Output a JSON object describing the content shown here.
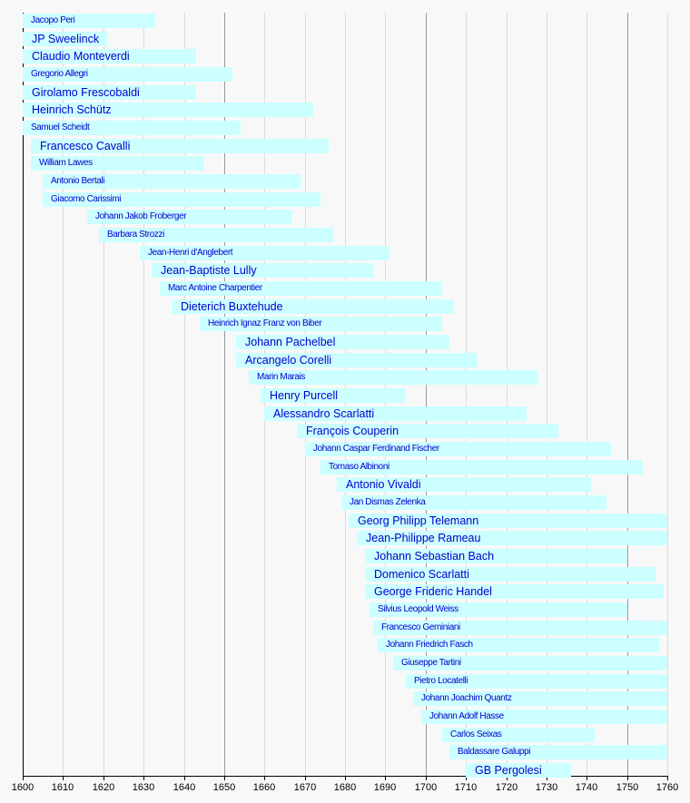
{
  "chart_data": {
    "type": "timeline",
    "title": "",
    "xlabel": "",
    "ylabel": "",
    "xlim": [
      1600,
      1760
    ],
    "grid": {
      "minor_every": 10,
      "major_every": 50
    },
    "tick_labels": [
      "1600",
      "1610",
      "1620",
      "1630",
      "1640",
      "1650",
      "1660",
      "1670",
      "1680",
      "1690",
      "1700",
      "1710",
      "1720",
      "1730",
      "1740",
      "1750",
      "1760"
    ],
    "bar_color": "#ccffff",
    "label_color": "#0000cc",
    "background": "#f8f8f8",
    "composers": [
      {
        "name": "Jacopo Peri",
        "start": 1600,
        "end": 1633,
        "emphasis": false
      },
      {
        "name": "JP Sweelinck",
        "start": 1600,
        "end": 1621,
        "emphasis": true
      },
      {
        "name": "Claudio Monteverdi",
        "start": 1600,
        "end": 1643,
        "emphasis": true
      },
      {
        "name": "Gregorio Allegri",
        "start": 1600,
        "end": 1652,
        "emphasis": false
      },
      {
        "name": "Girolamo Frescobaldi",
        "start": 1600,
        "end": 1643,
        "emphasis": true
      },
      {
        "name": "Heinrich Schütz",
        "start": 1600,
        "end": 1672,
        "emphasis": true
      },
      {
        "name": "Samuel Scheidt",
        "start": 1600,
        "end": 1654,
        "emphasis": false
      },
      {
        "name": "Francesco Cavalli",
        "start": 1602,
        "end": 1676,
        "emphasis": true
      },
      {
        "name": "William Lawes",
        "start": 1602,
        "end": 1645,
        "emphasis": false
      },
      {
        "name": "Antonio Bertali",
        "start": 1605,
        "end": 1669,
        "emphasis": false
      },
      {
        "name": "Giacomo Carissimi",
        "start": 1605,
        "end": 1674,
        "emphasis": false
      },
      {
        "name": "Johann Jakob Froberger",
        "start": 1616,
        "end": 1667,
        "emphasis": false
      },
      {
        "name": "Barbara Strozzi",
        "start": 1619,
        "end": 1677,
        "emphasis": false
      },
      {
        "name": "Jean-Henri d'Anglebert",
        "start": 1629,
        "end": 1691,
        "emphasis": false
      },
      {
        "name": "Jean-Baptiste Lully",
        "start": 1632,
        "end": 1687,
        "emphasis": true
      },
      {
        "name": "Marc Antoine Charpentier",
        "start": 1634,
        "end": 1704,
        "emphasis": false
      },
      {
        "name": "Dieterich Buxtehude",
        "start": 1637,
        "end": 1707,
        "emphasis": true
      },
      {
        "name": "Heinrich Ignaz Franz von Biber",
        "start": 1644,
        "end": 1704,
        "emphasis": false
      },
      {
        "name": "Johann Pachelbel",
        "start": 1653,
        "end": 1706,
        "emphasis": true
      },
      {
        "name": "Arcangelo Corelli",
        "start": 1653,
        "end": 1713,
        "emphasis": true
      },
      {
        "name": "Marin Marais",
        "start": 1656,
        "end": 1728,
        "emphasis": false
      },
      {
        "name": "Henry Purcell",
        "start": 1659,
        "end": 1695,
        "emphasis": true
      },
      {
        "name": "Alessandro Scarlatti",
        "start": 1660,
        "end": 1725,
        "emphasis": true
      },
      {
        "name": "François Couperin",
        "start": 1668,
        "end": 1733,
        "emphasis": true
      },
      {
        "name": "Johann Caspar Ferdinand Fischer",
        "start": 1670,
        "end": 1746,
        "emphasis": false
      },
      {
        "name": "Tomaso Albinoni",
        "start": 1674,
        "end": 1754,
        "emphasis": false
      },
      {
        "name": "Antonio Vivaldi",
        "start": 1678,
        "end": 1741,
        "emphasis": true
      },
      {
        "name": "Jan Dismas Zelenka",
        "start": 1679,
        "end": 1745,
        "emphasis": false
      },
      {
        "name": "Georg Philipp Telemann",
        "start": 1681,
        "end": 1767,
        "emphasis": true
      },
      {
        "name": "Jean-Philippe Rameau",
        "start": 1683,
        "end": 1764,
        "emphasis": true
      },
      {
        "name": "Johann Sebastian Bach",
        "start": 1685,
        "end": 1750,
        "emphasis": true
      },
      {
        "name": "Domenico Scarlatti",
        "start": 1685,
        "end": 1757,
        "emphasis": true
      },
      {
        "name": "George Frideric Handel",
        "start": 1685,
        "end": 1759,
        "emphasis": true
      },
      {
        "name": "Silvius Leopold Weiss",
        "start": 1686,
        "end": 1750,
        "emphasis": false
      },
      {
        "name": "Francesco Geminiani",
        "start": 1687,
        "end": 1762,
        "emphasis": false
      },
      {
        "name": "Johann Friedrich Fasch",
        "start": 1688,
        "end": 1758,
        "emphasis": false
      },
      {
        "name": "Giuseppe Tartini",
        "start": 1692,
        "end": 1770,
        "emphasis": false
      },
      {
        "name": "Pietro Locatelli",
        "start": 1695,
        "end": 1764,
        "emphasis": false
      },
      {
        "name": "Johann Joachim Quantz",
        "start": 1697,
        "end": 1773,
        "emphasis": false
      },
      {
        "name": "Johann Adolf Hasse",
        "start": 1699,
        "end": 1783,
        "emphasis": false
      },
      {
        "name": "Carlos Seixas",
        "start": 1704,
        "end": 1742,
        "emphasis": false
      },
      {
        "name": "Baldassare Galuppi",
        "start": 1706,
        "end": 1785,
        "emphasis": false
      },
      {
        "name": "GB Pergolesi",
        "start": 1710,
        "end": 1736,
        "emphasis": true
      }
    ]
  }
}
